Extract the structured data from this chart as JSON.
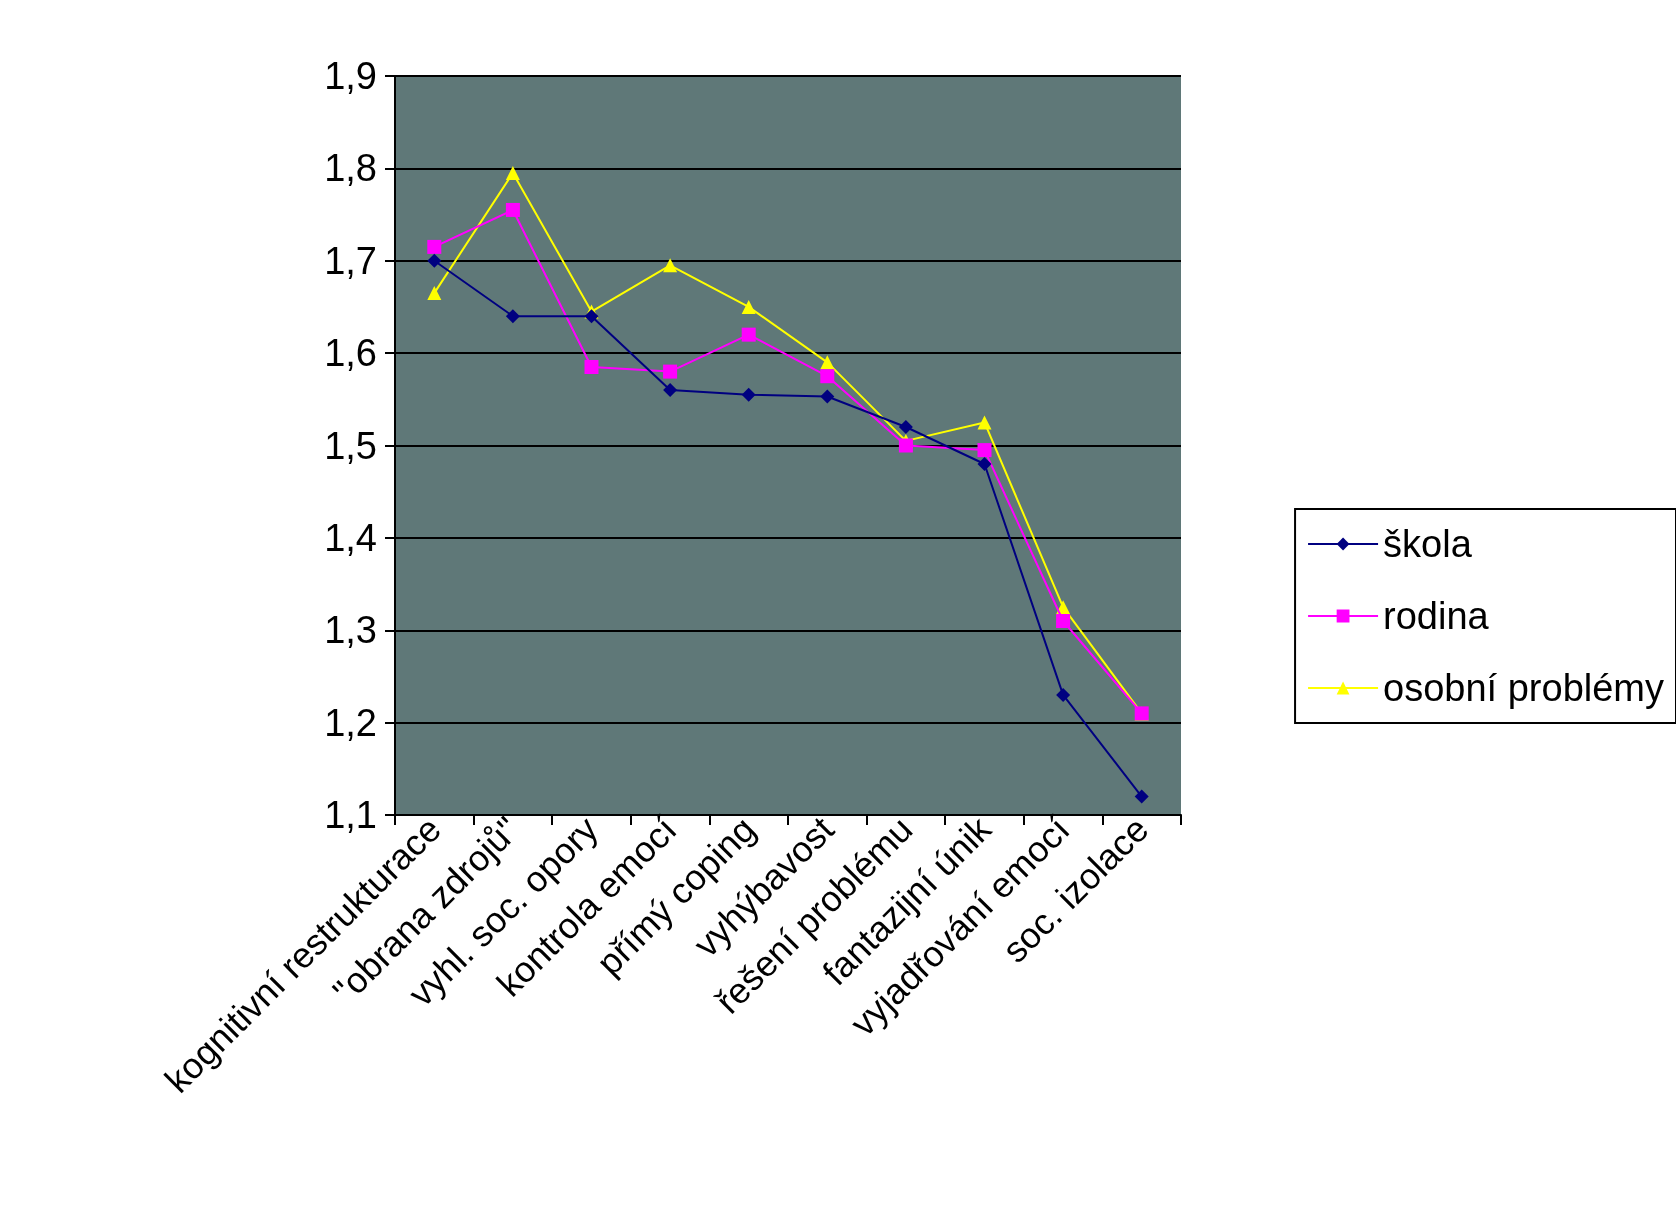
{
  "chart_data": {
    "type": "line",
    "categories": [
      "kognitivní restrukturace",
      "\"obrana zdrojů\"",
      "vyhl. soc. opory",
      "kontrola emocí",
      "přímý coping",
      "vyhýbavost",
      "řešení problému",
      "fantazijní únik",
      "vyjadřování emocí",
      "soc. izolace"
    ],
    "series": [
      {
        "name": "škola",
        "color": "#000080",
        "marker": "diamond",
        "values": [
          1.7,
          1.64,
          1.64,
          1.56,
          1.555,
          1.553,
          1.52,
          1.48,
          1.23,
          1.12
        ]
      },
      {
        "name": "rodina",
        "color": "#ff00ff",
        "marker": "square",
        "values": [
          1.715,
          1.755,
          1.585,
          1.58,
          1.62,
          1.575,
          1.5,
          1.495,
          1.31,
          1.21
        ]
      },
      {
        "name": "osobní problémy",
        "color": "#ffff00",
        "marker": "triangle",
        "values": [
          1.665,
          1.795,
          1.645,
          1.695,
          1.65,
          1.59,
          1.505,
          1.525,
          1.325,
          1.21
        ]
      }
    ],
    "ylim": [
      1.1,
      1.9
    ],
    "yticks": [
      {
        "value": 1.1,
        "label": "1,1"
      },
      {
        "value": 1.2,
        "label": "1,2"
      },
      {
        "value": 1.3,
        "label": "1,3"
      },
      {
        "value": 1.4,
        "label": "1,4"
      },
      {
        "value": 1.5,
        "label": "1,5"
      },
      {
        "value": 1.6,
        "label": "1,6"
      },
      {
        "value": 1.7,
        "label": "1,7"
      },
      {
        "value": 1.8,
        "label": "1,8"
      },
      {
        "value": 1.9,
        "label": "1,9"
      }
    ],
    "grid": "y",
    "legend": "right",
    "line_style": "solid"
  }
}
